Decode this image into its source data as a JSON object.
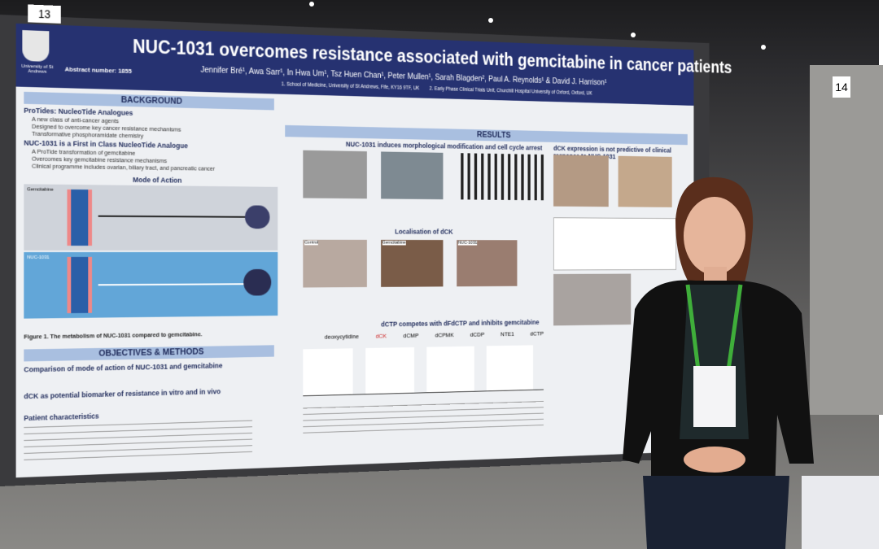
{
  "board_numbers": [
    "13",
    "14"
  ],
  "poster": {
    "logo_text": "University of St Andrews",
    "abstract_number": "Abstract number: 1855",
    "title": "NUC-1031 overcomes resistance associated with gemcitabine in cancer patients",
    "authors": "Jennifer Bré¹, Awa Sarr¹, In Hwa Um¹, Tsz Huen Chan¹, Peter Mullen¹, Sarah Blagden², Paul A. Reynolds¹ & David J. Harrison¹",
    "affiliations": [
      "1. School of Medicine, University of St Andrews, Fife, KY16 9TF, UK",
      "2. Early Phase Clinical Trials Unit, Churchill Hospital University of Oxford, Oxford, UK"
    ],
    "background": {
      "heading": "BACKGROUND",
      "subheading": "ProTides: NucleoTide Analogues",
      "bullets": [
        "A new class of anti-cancer agents",
        "Designed to overcome key cancer resistance mechanisms",
        "Transformative phosphoramidate chemistry"
      ],
      "subheading2": "NUC-1031 is a First in Class NucleoTide Analogue",
      "bullets2": [
        "A ProTide transformation of gemcitabine",
        "Overcomes key gemcitabine resistance mechanisms",
        "Clinical programme includes ovarian, biliary tract, and pancreatic cancer"
      ],
      "figure_heading": "Mode of Action",
      "figure_labels": [
        "Gemcitabine",
        "NUC-1031"
      ],
      "caption": "Figure 1. The metabolism of NUC-1031 compared to gemcitabine."
    },
    "objectives": {
      "heading": "OBJECTIVES & METHODS",
      "items": [
        "Comparison of mode of action of NUC-1031 and gemcitabine",
        "dCK as potential biomarker of resistance in vitro and in vivo",
        "Patient characteristics"
      ]
    },
    "results": {
      "heading": "RESULTS",
      "section1": "NUC-1031 induces morphological modification and cell cycle arrest",
      "section2": "Localisation of dCK",
      "panels": [
        "Control",
        "Gemcitabine",
        "NUC-1031"
      ],
      "section3": "dCTP competes with dFdCTP and inhibits gemcitabine",
      "pathway": [
        "deoxycytidine",
        "dCK",
        "dCMP",
        "dCPMK",
        "dCDP",
        "NTE1",
        "dCTP"
      ],
      "section4": "dCK expression is not predictive of clinical response to NUC-1031"
    }
  }
}
